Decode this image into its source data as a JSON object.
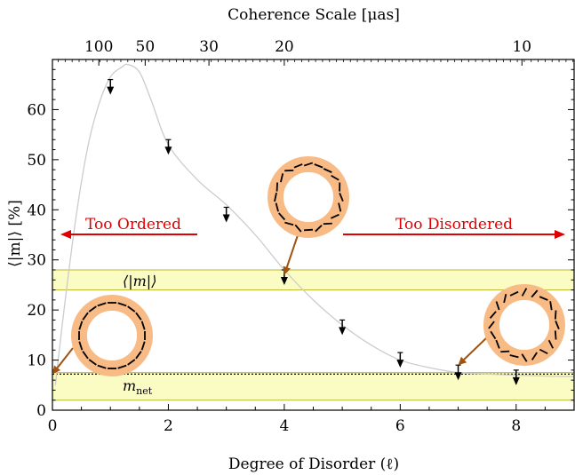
{
  "chart_data": {
    "type": "scatter",
    "title": "",
    "xlabel": "Degree of Disorder (ℓ)",
    "ylabel": "⟨|m|⟩ [%]",
    "top_xlabel": "Coherence Scale [μas]",
    "xlim": [
      0,
      9
    ],
    "ylim": [
      0,
      70
    ],
    "x_ticks": [
      0,
      2,
      4,
      6,
      8
    ],
    "y_ticks": [
      0,
      10,
      20,
      30,
      40,
      50,
      60
    ],
    "top_ticks": [
      {
        "label": "100",
        "x": 0.8
      },
      {
        "label": "50",
        "x": 1.6
      },
      {
        "label": "30",
        "x": 2.7
      },
      {
        "label": "20",
        "x": 4.0
      },
      {
        "label": "10",
        "x": 8.1
      }
    ],
    "upper_limits": [
      {
        "x": 1,
        "y": 66
      },
      {
        "x": 2,
        "y": 54
      },
      {
        "x": 3,
        "y": 40.5
      },
      {
        "x": 4,
        "y": 28
      },
      {
        "x": 5,
        "y": 18
      },
      {
        "x": 6,
        "y": 11.5
      },
      {
        "x": 7,
        "y": 9
      },
      {
        "x": 8,
        "y": 8
      }
    ],
    "curve": {
      "x": [
        0.05,
        0.2,
        0.4,
        0.6,
        0.8,
        1.0,
        1.2,
        1.3,
        1.5,
        1.7,
        2.0,
        2.5,
        3.0,
        3.5,
        4.0,
        4.5,
        5.0,
        5.5,
        6.0,
        6.5,
        7.0,
        7.5,
        8.0,
        8.5,
        9.0
      ],
      "y": [
        5,
        20,
        38,
        52,
        61,
        66.5,
        68.5,
        69,
        67.5,
        62,
        53,
        46,
        41,
        35,
        28,
        22,
        17,
        13,
        10,
        8.5,
        7.5,
        7.2,
        7.0,
        6.8,
        6.7
      ]
    },
    "bands": [
      {
        "name": "⟨|m|⟩",
        "y_low": 24,
        "y_high": 28
      },
      {
        "name": "m_net",
        "y_low": 2,
        "y_high": 7.5
      }
    ],
    "m_net_line": 7.2,
    "annotations": {
      "too_ordered": "Too Ordered",
      "too_disordered": "Too Disordered",
      "band_m_label": "⟨|m|⟩",
      "band_mnet_base": "m",
      "band_mnet_sub": "net"
    },
    "rings": [
      {
        "id": "ordered",
        "target_x": 0,
        "target_y": 7.2
      },
      {
        "id": "intermediate",
        "target_x": 4,
        "target_y": 27
      },
      {
        "id": "disordered",
        "target_x": 7,
        "target_y": 9
      }
    ],
    "colors": {
      "band": "#fbfbc4",
      "band_edge": "#b8b830",
      "curve": "#cccccc",
      "arrow_red": "#e00000",
      "ring": "#f8bb85",
      "pointer": "#a0520f"
    }
  }
}
